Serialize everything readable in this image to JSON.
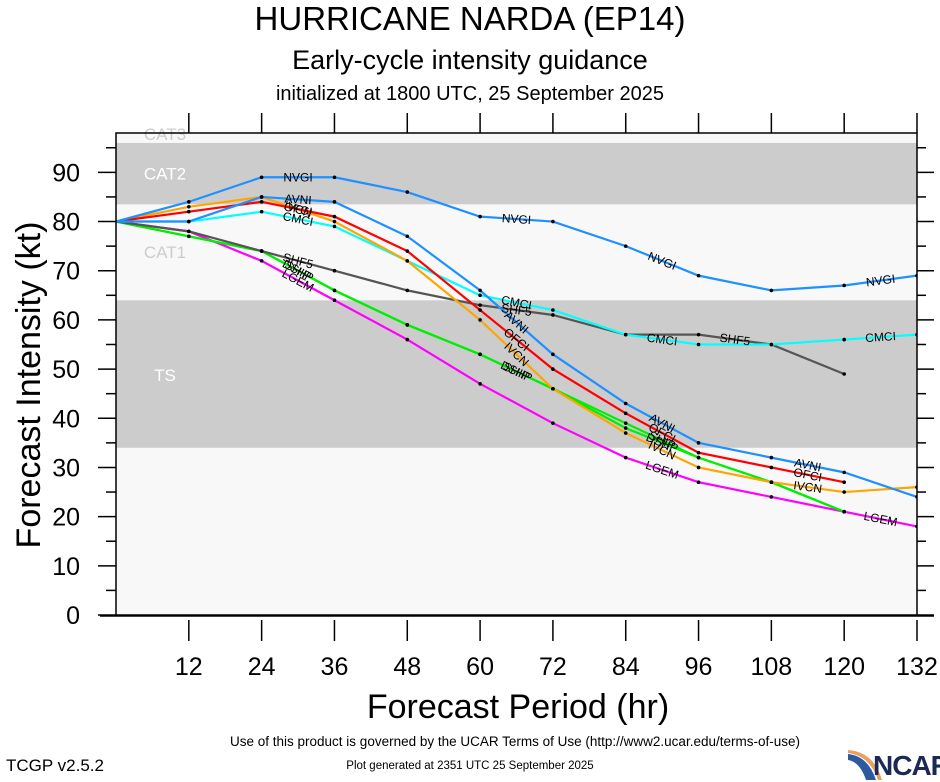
{
  "header": {
    "title": "HURRICANE NARDA (EP14)",
    "subtitle": "Early-cycle intensity guidance",
    "init": "initialized at 1800 UTC, 25 September 2025"
  },
  "footer": {
    "terms": "Use of this product is governed by the UCAR Terms of Use (http://www2.ucar.edu/terms-of-use)",
    "generated": "Plot generated at 2351 UTC   25 September 2025",
    "version": "TCGP v2.5.2",
    "logo": "NCAR"
  },
  "chart_data": {
    "type": "line",
    "title": "HURRICANE NARDA (EP14)",
    "xlabel": "Forecast Period (hr)",
    "ylabel": "Forecast Intensity (kt)",
    "xlim": [
      0,
      132
    ],
    "ylim": [
      0,
      98
    ],
    "xticks": [
      12,
      24,
      36,
      48,
      60,
      72,
      84,
      96,
      108,
      120,
      132
    ],
    "yticks": [
      0,
      10,
      20,
      30,
      40,
      50,
      60,
      70,
      80,
      90
    ],
    "x": [
      0,
      12,
      24,
      36,
      48,
      60,
      72,
      84,
      96,
      108,
      120,
      132
    ],
    "bands": [
      {
        "name": "TS",
        "from": 34,
        "to": 64,
        "color": "#cccccc"
      },
      {
        "name": "CAT1",
        "from": 64,
        "to": 83.5,
        "color": "#f8f8f8"
      },
      {
        "name": "CAT2",
        "from": 83.5,
        "to": 96,
        "color": "#cccccc"
      },
      {
        "name": "CAT3",
        "from": 96,
        "to": 113,
        "color": "#f8f8f8"
      }
    ],
    "series": [
      {
        "name": "LGEM",
        "color": "#ff00ff",
        "values": [
          80,
          78,
          72,
          64,
          56,
          47,
          39,
          32,
          27,
          24,
          21,
          18
        ],
        "labels_at": [
          24,
          84,
          120
        ]
      },
      {
        "name": "DSHP",
        "color": "#00ee00",
        "values": [
          80,
          77,
          74,
          66,
          59,
          53,
          46,
          38,
          32,
          27,
          21,
          null
        ],
        "labels_at": [
          24,
          60,
          84
        ]
      },
      {
        "name": "SHIP",
        "color": "#00ee00",
        "values": [
          80,
          77,
          74,
          66,
          59,
          53,
          46,
          39,
          32,
          27,
          21,
          null
        ],
        "labels_at": [
          24,
          60,
          84,
          120
        ]
      },
      {
        "name": "SHF5",
        "color": "#555555",
        "values": [
          80,
          78,
          74,
          70,
          66,
          63,
          61,
          57,
          57,
          55,
          49,
          null
        ],
        "labels_at": [
          24,
          60,
          96
        ]
      },
      {
        "name": "CMCI",
        "color": "#00ffff",
        "values": [
          80,
          80,
          82,
          79,
          72,
          65,
          62,
          57,
          55,
          55,
          56,
          57
        ],
        "labels_at": [
          24,
          60,
          84,
          120
        ]
      },
      {
        "name": "IVCN",
        "color": "#ffa500",
        "values": [
          80,
          83,
          85,
          80,
          72,
          60,
          46,
          37,
          30,
          27,
          25,
          26
        ],
        "labels_at": [
          24,
          60,
          84,
          108
        ]
      },
      {
        "name": "OFCI",
        "color": "#ff0000",
        "values": [
          80,
          82,
          84,
          81,
          74,
          62,
          50,
          41,
          33,
          30,
          27,
          null
        ],
        "labels_at": [
          24,
          60,
          84,
          108
        ]
      },
      {
        "name": "AVNI",
        "color": "#1e90ff",
        "values": [
          80,
          80,
          85,
          84,
          77,
          66,
          53,
          43,
          35,
          32,
          29,
          24
        ],
        "labels_at": [
          24,
          60,
          84,
          108
        ]
      },
      {
        "name": "NVGI",
        "color": "#1e90ff",
        "values": [
          80,
          84,
          89,
          89,
          86,
          81,
          80,
          75,
          69,
          66,
          67,
          69
        ],
        "labels_at": [
          24,
          60,
          84,
          120
        ]
      }
    ]
  }
}
